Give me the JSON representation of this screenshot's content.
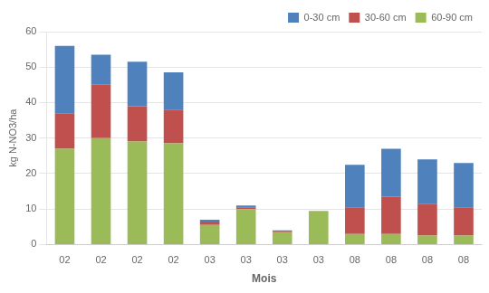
{
  "chart_data": {
    "type": "bar",
    "stacked": true,
    "categories": [
      "02",
      "02",
      "02",
      "02",
      "03",
      "03",
      "03",
      "03",
      "08",
      "08",
      "08",
      "08"
    ],
    "series": [
      {
        "name": "60-90 cm",
        "color": "#9BBB59",
        "values": [
          27,
          30,
          29,
          28.5,
          5.5,
          10,
          3.5,
          9.5,
          3,
          3,
          2.5,
          2.5
        ]
      },
      {
        "name": "30-60 cm",
        "color": "#C0504D",
        "values": [
          10,
          15,
          10,
          9.5,
          1.0,
          0.5,
          0.2,
          0,
          7.5,
          10.5,
          9,
          8
        ]
      },
      {
        "name": "0-30 cm",
        "color": "#4F81BD",
        "values": [
          19,
          8.5,
          12.5,
          10.5,
          0.5,
          0.5,
          0.3,
          0,
          12,
          13.5,
          12.5,
          12.5
        ]
      }
    ],
    "xlabel": "Mois",
    "ylabel": "kg N-NO3/ha",
    "ylim": [
      0,
      60
    ],
    "yticks": [
      0,
      10,
      20,
      30,
      40,
      50,
      60
    ],
    "grid": true,
    "legend": "upper right"
  }
}
